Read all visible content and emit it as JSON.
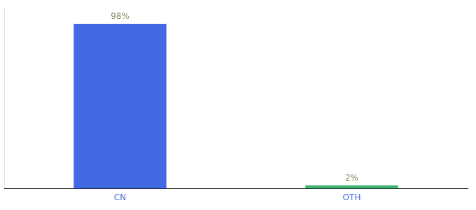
{
  "chart_data": {
    "type": "bar",
    "categories": [
      "CN",
      "OTH"
    ],
    "values": [
      98,
      2
    ],
    "value_labels": [
      "98%",
      "2%"
    ],
    "colors": [
      "#4169E1",
      "#3CB371"
    ],
    "ylim": [
      0,
      108
    ],
    "grid": false,
    "data_labels": true,
    "tick_labels": "x"
  }
}
